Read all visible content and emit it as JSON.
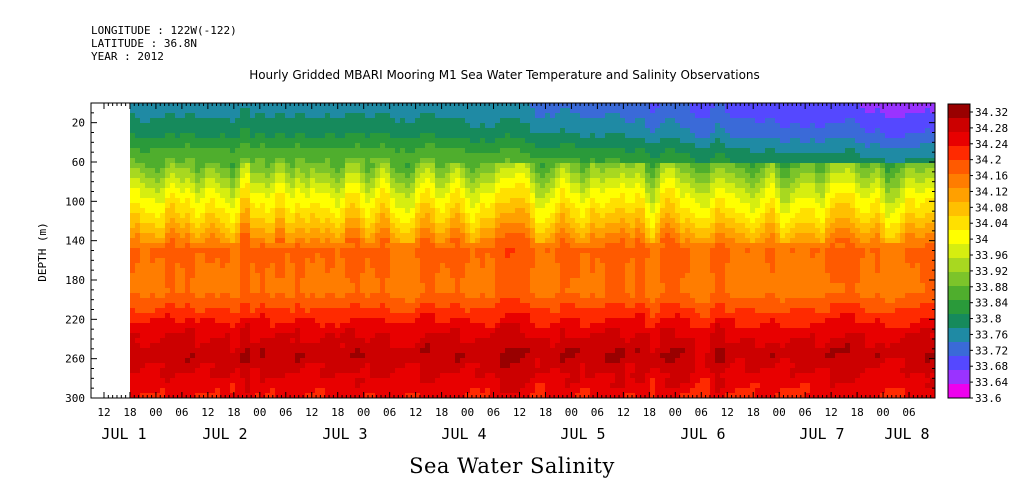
{
  "meta": {
    "longitude": "LONGITUDE : 122W(-122)",
    "latitude": "LATITUDE : 36.8N",
    "year": "YEAR : 2012"
  },
  "chart_data": {
    "type": "heatmap",
    "title": "Hourly Gridded MBARI Mooring M1 Sea Water Temperature and Salinity Observations",
    "xlabel": "Sea Water Salinity",
    "ylabel": "DEPTH (m)",
    "ylim": [
      300,
      0
    ],
    "y_ticks": [
      "20",
      "60",
      "100",
      "140",
      "180",
      "220",
      "260",
      "300"
    ],
    "x_hour_ticks": [
      "12",
      "18",
      "00",
      "06",
      "12",
      "18",
      "00",
      "06",
      "12",
      "18",
      "00",
      "06",
      "12",
      "18",
      "00",
      "06",
      "12",
      "18",
      "00",
      "06",
      "12",
      "18",
      "00",
      "06",
      "12",
      "18",
      "00",
      "06",
      "12",
      "18",
      "00",
      "06"
    ],
    "x_day_labels": [
      "JUL 1",
      "JUL 2",
      "JUL 3",
      "JUL 4",
      "JUL 5",
      "JUL 6",
      "JUL 7",
      "JUL 8"
    ],
    "colorbar_levels": [
      "34.32",
      "34.28",
      "34.24",
      "34.2",
      "34.16",
      "34.12",
      "34.08",
      "34.04",
      "34",
      "33.96",
      "33.92",
      "33.88",
      "33.84",
      "33.8",
      "33.76",
      "33.72",
      "33.68",
      "33.64",
      "33.6"
    ],
    "colors": {
      "low": "#ee00ee",
      "mid": "#ffff00",
      "high": "#990000"
    },
    "depth_profile": [
      {
        "depth": 5,
        "salinity": 33.76
      },
      {
        "depth": 30,
        "salinity": 33.8
      },
      {
        "depth": 60,
        "salinity": 33.88
      },
      {
        "depth": 90,
        "salinity": 33.98
      },
      {
        "depth": 120,
        "salinity": 34.06
      },
      {
        "depth": 150,
        "salinity": 34.16
      },
      {
        "depth": 190,
        "salinity": 34.14
      },
      {
        "depth": 230,
        "salinity": 34.24
      },
      {
        "depth": 255,
        "salinity": 34.28
      },
      {
        "depth": 300,
        "salinity": 34.22
      }
    ]
  }
}
